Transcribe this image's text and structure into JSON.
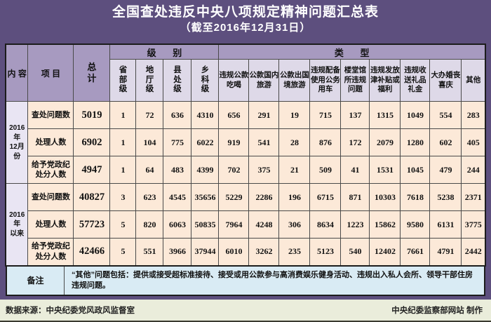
{
  "header": {
    "title": "全国查处违反中央八项规定精神问题汇总表",
    "subtitle": "（截至2016年12月31日）"
  },
  "colors": {
    "page_background": "#5d4f7e",
    "header_purple": "#a79ac0",
    "subheader_lavender": "#ded9e8",
    "group_lavender": "#e9e5f3",
    "data_peach": "#fce9d8",
    "note_blue": "#d9ebf4",
    "footer_green": "#eaeddb",
    "title_text": "#ffffff"
  },
  "table": {
    "corner": {
      "content": "内 容",
      "project": "项 目",
      "total": "总计"
    },
    "band": {
      "level": "级 别",
      "type": "类 型"
    },
    "level_columns": [
      "省部级",
      "地厅级",
      "县处级",
      "乡科级"
    ],
    "type_columns": [
      "违规公款吃喝",
      "公款国内旅游",
      "公款出国境旅游",
      "违规配备使用公务用车",
      "楼堂馆所违规问题",
      "违规发放津补贴或福利",
      "违规收送礼品礼金",
      "大办婚丧喜庆",
      "其他"
    ],
    "groups": [
      {
        "label": "2016年\n12月份",
        "rows": [
          {
            "label": "查处问题数",
            "total": "5019",
            "values": [
              "1",
              "72",
              "636",
              "4310",
              "656",
              "291",
              "19",
              "715",
              "137",
              "1315",
              "1049",
              "554",
              "283"
            ]
          },
          {
            "label": "处理人数",
            "total": "6902",
            "values": [
              "1",
              "104",
              "775",
              "6022",
              "919",
              "541",
              "28",
              "876",
              "172",
              "2079",
              "1280",
              "602",
              "405"
            ]
          },
          {
            "label": "给予党政纪处分人数",
            "total": "4947",
            "values": [
              "1",
              "64",
              "483",
              "4399",
              "702",
              "375",
              "21",
              "509",
              "41",
              "1531",
              "1045",
              "479",
              "244"
            ]
          }
        ]
      },
      {
        "label": "2016年\n以来",
        "rows": [
          {
            "label": "查处问题数",
            "total": "40827",
            "values": [
              "3",
              "623",
              "4545",
              "35656",
              "5229",
              "2286",
              "196",
              "6715",
              "871",
              "10303",
              "7618",
              "5238",
              "2371"
            ]
          },
          {
            "label": "处理人数",
            "total": "57723",
            "values": [
              "5",
              "820",
              "6063",
              "50835",
              "7964",
              "4248",
              "306",
              "8634",
              "1223",
              "15862",
              "9580",
              "6131",
              "3775"
            ]
          },
          {
            "label": "给予党政纪处分人数",
            "total": "42466",
            "values": [
              "5",
              "551",
              "3966",
              "37944",
              "6010",
              "3262",
              "235",
              "5123",
              "540",
              "12402",
              "7661",
              "4791",
              "2442"
            ]
          }
        ]
      }
    ],
    "note": {
      "label": "备注",
      "text": "“其他”问题包括：提供或接受超标准接待、接受或用公款参与高消费娱乐健身活动、违规出入私人会所、领导干部住房违规问题。"
    }
  },
  "footer": {
    "source": "数据来源：中央纪委党风政风监督室",
    "credit": "中央纪委监察部网站  制作"
  }
}
